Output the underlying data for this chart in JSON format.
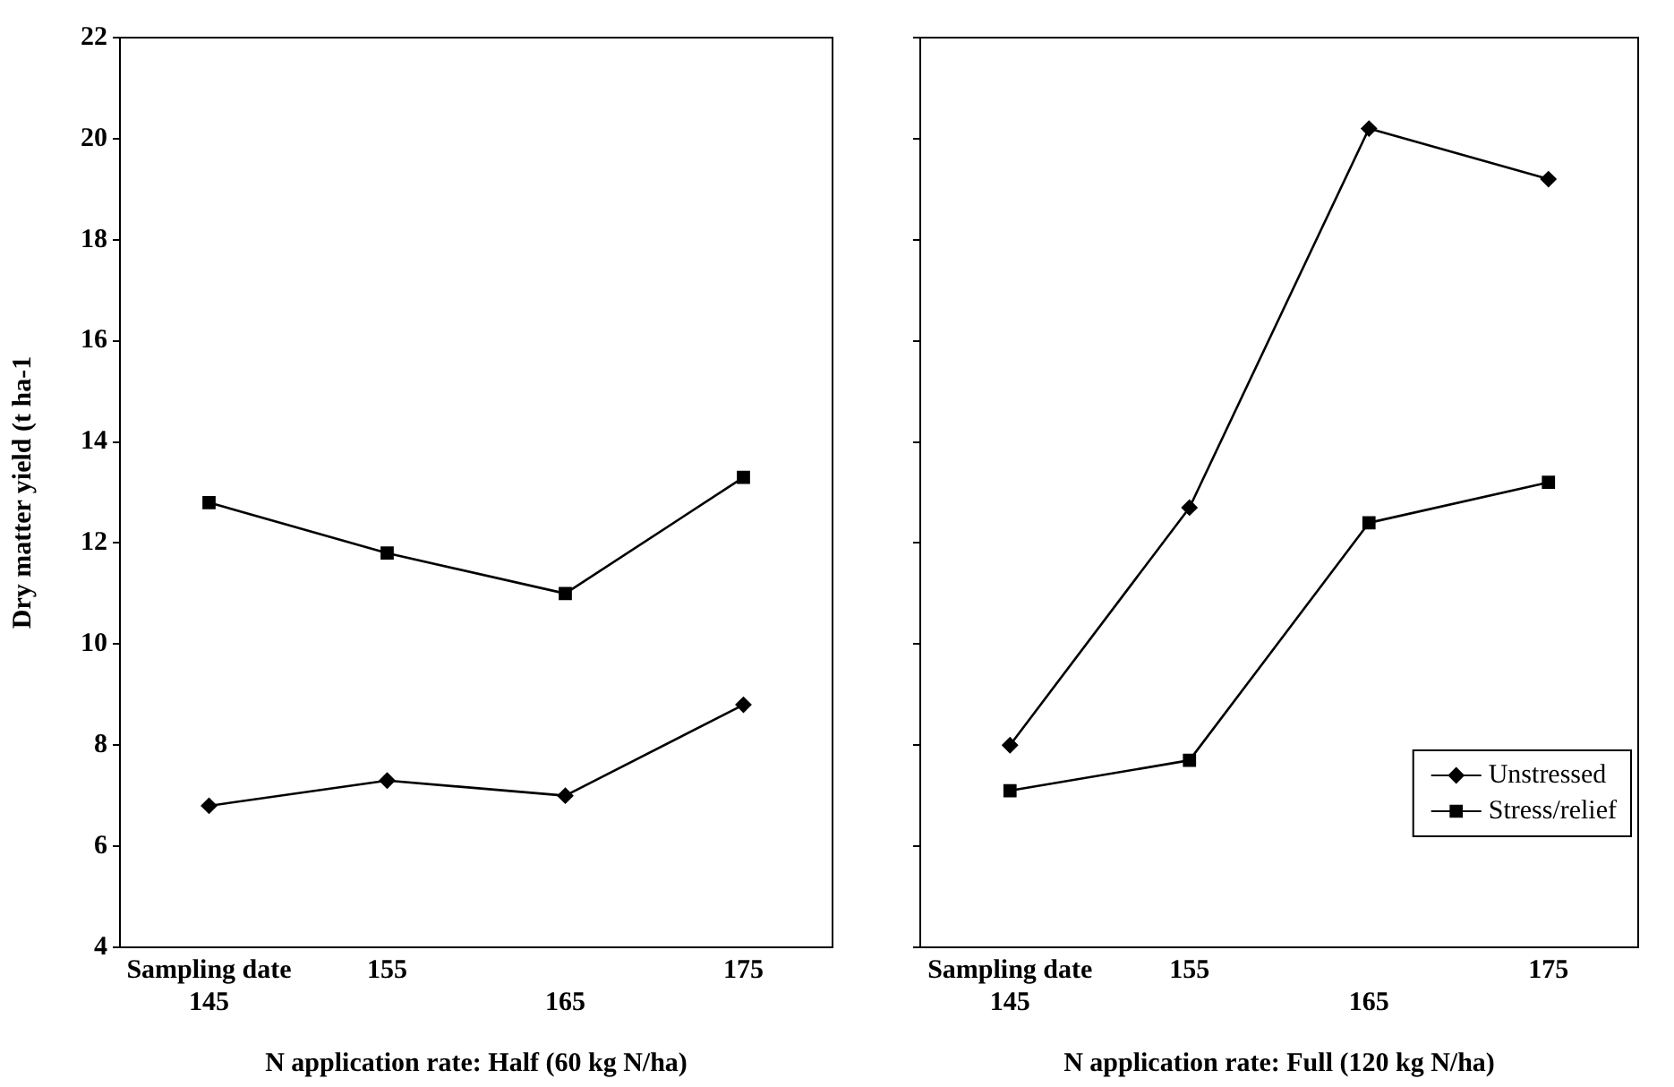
{
  "chart_data": [
    {
      "type": "line",
      "xlabel": "N application rate: Half (60 kg N/ha)",
      "ylabel": "Dry matter yield (t ha-1",
      "categories": [
        "145",
        "155",
        "165",
        "175"
      ],
      "annotations": [
        "Sampling date"
      ],
      "series": [
        {
          "color": "#000000",
          "marker": "diamond",
          "values": [
            6.8,
            7.3,
            7.0,
            8.8
          ]
        },
        {
          "color": "#000000",
          "marker": "square",
          "values": [
            12.8,
            11.8,
            11.0,
            13.3
          ]
        }
      ],
      "ylim": [
        4,
        22
      ],
      "yticks": [
        4,
        6,
        8,
        10,
        12,
        14,
        16,
        18,
        20,
        22
      ],
      "grid": false,
      "legend": false
    },
    {
      "type": "line",
      "xlabel": "N application rate: Full (120 kg N/ha)",
      "categories": [
        "145",
        "155",
        "165",
        "175"
      ],
      "annotations": [
        "Sampling date"
      ],
      "series": [
        {
          "name": "Unstressed",
          "color": "#000000",
          "marker": "diamond",
          "values": [
            8.0,
            12.7,
            20.2,
            19.2
          ]
        },
        {
          "name": "Stress/relief",
          "color": "#000000",
          "marker": "square",
          "values": [
            7.1,
            7.7,
            12.4,
            13.2
          ]
        }
      ],
      "ylim": [
        4,
        22
      ],
      "yticks": [
        4,
        6,
        8,
        10,
        12,
        14,
        16,
        18,
        20,
        22
      ],
      "tick_labels": "x",
      "grid": false,
      "legend": "bottom right"
    }
  ]
}
